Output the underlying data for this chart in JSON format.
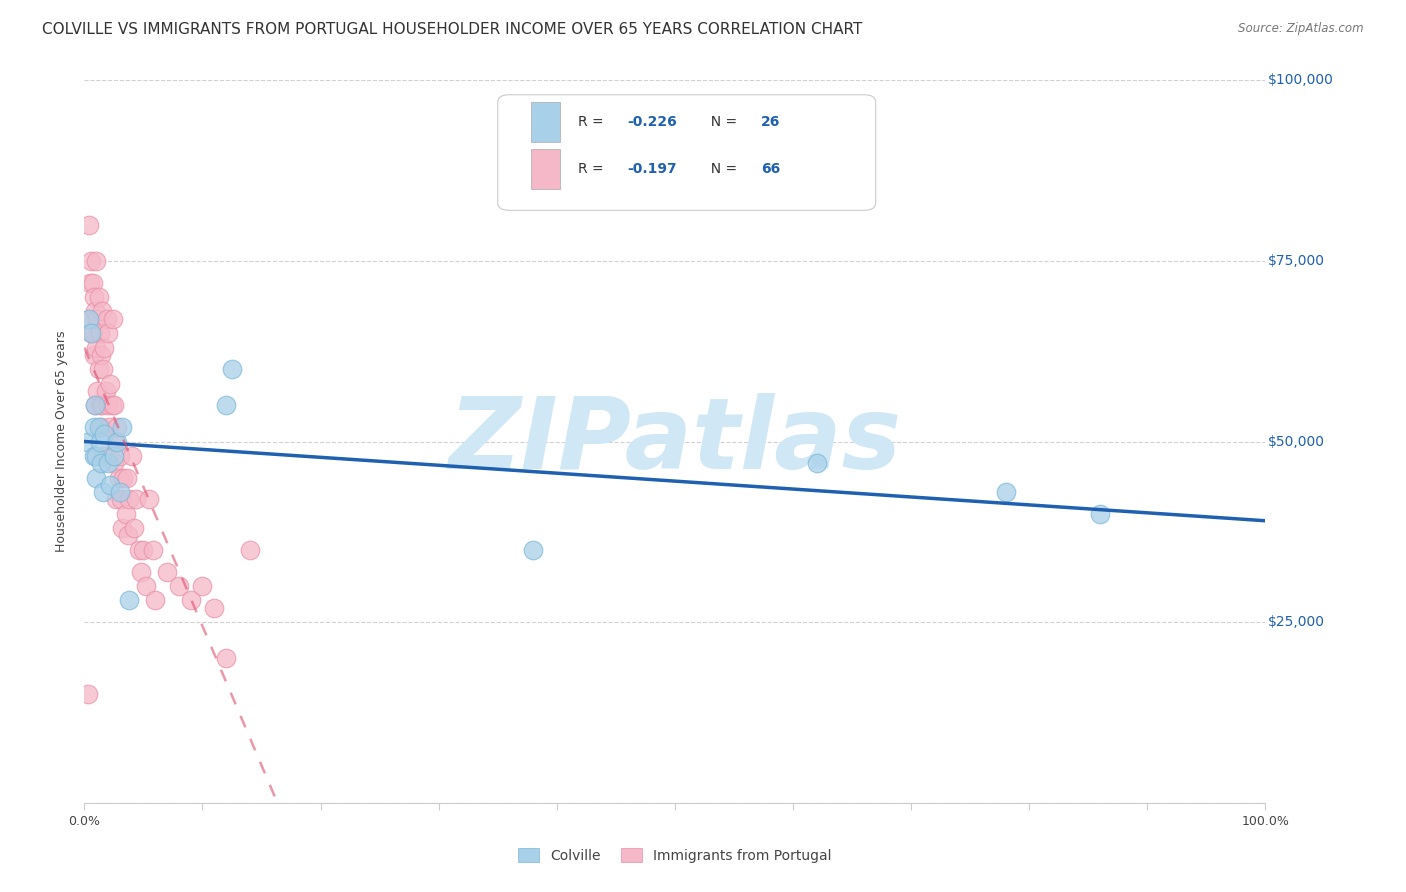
{
  "title": "COLVILLE VS IMMIGRANTS FROM PORTUGAL HOUSEHOLDER INCOME OVER 65 YEARS CORRELATION CHART",
  "source": "Source: ZipAtlas.com",
  "ylabel": "Householder Income Over 65 years",
  "ylim": [
    0,
    100000
  ],
  "xlim": [
    0.0,
    1.0
  ],
  "yticks": [
    0,
    25000,
    50000,
    75000,
    100000
  ],
  "ytick_labels": [
    "",
    "$25,000",
    "$50,000",
    "$75,000",
    "$100,000"
  ],
  "R_colville": -0.226,
  "N_colville": 26,
  "R_portugal": -0.197,
  "N_portugal": 66,
  "colville_color": "#a8d0e8",
  "colville_edge_color": "#7ab8d8",
  "portugal_color": "#f5b8c8",
  "portugal_edge_color": "#e890a8",
  "colville_line_color": "#2060b0",
  "portugal_line_color": "#e05070",
  "watermark_color": "#d0e8f5",
  "bg_color": "#ffffff",
  "grid_color": "#cccccc",
  "title_fontsize": 11,
  "axis_label_fontsize": 9,
  "tick_fontsize": 9,
  "colville_x": [
    0.002,
    0.004,
    0.006,
    0.008,
    0.008,
    0.009,
    0.01,
    0.01,
    0.012,
    0.013,
    0.014,
    0.016,
    0.017,
    0.02,
    0.022,
    0.025,
    0.028,
    0.03,
    0.032,
    0.038,
    0.12,
    0.125,
    0.38,
    0.62,
    0.78,
    0.86
  ],
  "colville_y": [
    50000,
    67000,
    65000,
    52000,
    48000,
    55000,
    48000,
    45000,
    52000,
    50000,
    47000,
    43000,
    51000,
    47000,
    44000,
    48000,
    50000,
    43000,
    52000,
    28000,
    55000,
    60000,
    35000,
    47000,
    43000,
    40000
  ],
  "portugal_x": [
    0.003,
    0.004,
    0.004,
    0.005,
    0.006,
    0.006,
    0.007,
    0.007,
    0.008,
    0.008,
    0.009,
    0.009,
    0.01,
    0.01,
    0.011,
    0.011,
    0.012,
    0.012,
    0.013,
    0.013,
    0.014,
    0.014,
    0.015,
    0.015,
    0.016,
    0.016,
    0.017,
    0.018,
    0.019,
    0.02,
    0.02,
    0.021,
    0.022,
    0.023,
    0.024,
    0.025,
    0.025,
    0.026,
    0.027,
    0.028,
    0.029,
    0.03,
    0.031,
    0.032,
    0.033,
    0.035,
    0.036,
    0.037,
    0.038,
    0.04,
    0.042,
    0.044,
    0.046,
    0.048,
    0.05,
    0.052,
    0.055,
    0.058,
    0.06,
    0.07,
    0.08,
    0.09,
    0.1,
    0.11,
    0.12,
    0.14
  ],
  "portugal_y": [
    15000,
    80000,
    67000,
    72000,
    75000,
    65000,
    72000,
    65000,
    70000,
    62000,
    68000,
    55000,
    75000,
    63000,
    67000,
    57000,
    70000,
    60000,
    65000,
    55000,
    62000,
    52000,
    68000,
    55000,
    60000,
    48000,
    63000,
    57000,
    67000,
    65000,
    55000,
    52000,
    58000,
    55000,
    67000,
    55000,
    47000,
    50000,
    42000,
    52000,
    45000,
    48000,
    42000,
    38000,
    45000,
    40000,
    45000,
    37000,
    42000,
    48000,
    38000,
    42000,
    35000,
    32000,
    35000,
    30000,
    42000,
    35000,
    28000,
    32000,
    30000,
    28000,
    30000,
    27000,
    20000,
    35000
  ]
}
